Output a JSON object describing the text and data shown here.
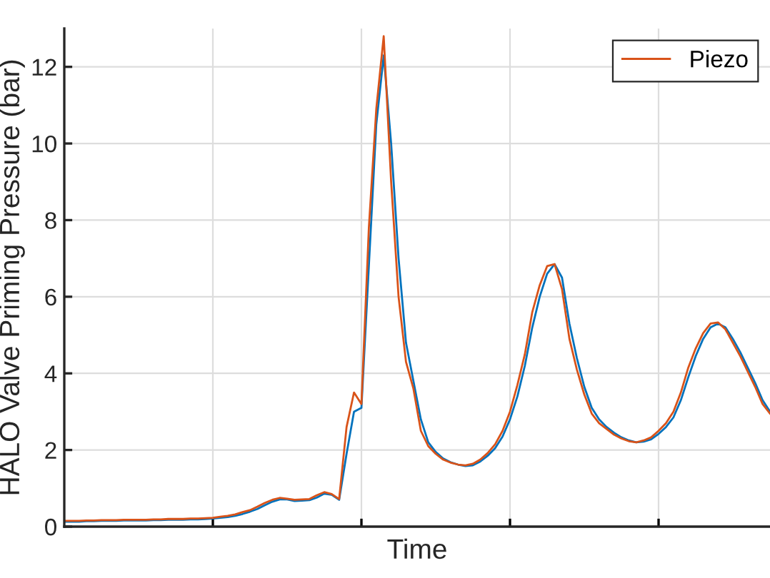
{
  "chart_data": {
    "type": "line",
    "xlabel": "Time",
    "ylabel": "HALO Valve Priming Pressure (bar)",
    "categories": [
      null,
      null,
      null,
      null,
      null,
      null,
      null,
      null,
      null,
      null,
      null,
      null,
      null,
      null,
      null,
      null,
      null,
      null,
      null,
      null,
      null,
      null,
      null,
      null,
      null,
      null,
      null,
      null,
      null,
      null,
      null,
      null,
      null,
      null,
      null,
      null,
      null,
      null,
      null,
      null,
      null,
      null,
      null,
      null,
      null,
      null,
      null,
      null,
      null,
      null,
      null,
      null,
      null,
      null,
      null,
      null,
      null,
      null,
      null,
      null,
      null,
      null,
      null,
      null,
      null,
      null,
      null,
      null,
      null,
      null,
      null,
      null,
      null,
      null,
      null,
      null,
      null,
      null,
      null,
      null,
      null,
      null,
      null,
      null,
      null,
      null,
      null,
      null,
      null,
      null,
      null,
      null,
      null,
      null,
      null,
      null
    ],
    "ylim": [
      0,
      13
    ],
    "yticks": [
      0,
      2,
      4,
      6,
      8,
      10,
      12
    ],
    "tick_labels": "y",
    "grid": true,
    "legend": "top right",
    "marker": "none",
    "line_style": "solid",
    "series": [
      {
        "color": "#0072bd",
        "values": [
          0.13,
          0.13,
          0.13,
          0.14,
          0.14,
          0.15,
          0.15,
          0.15,
          0.16,
          0.16,
          0.16,
          0.16,
          0.17,
          0.17,
          0.18,
          0.18,
          0.18,
          0.19,
          0.19,
          0.2,
          0.21,
          0.23,
          0.25,
          0.28,
          0.33,
          0.39,
          0.46,
          0.56,
          0.65,
          0.71,
          0.71,
          0.67,
          0.68,
          0.69,
          0.76,
          0.86,
          0.83,
          0.7,
          1.9,
          3.0,
          3.1,
          6.8,
          10.5,
          12.3,
          10.0,
          7.0,
          4.8,
          3.8,
          2.8,
          2.2,
          1.95,
          1.78,
          1.68,
          1.62,
          1.58,
          1.6,
          1.7,
          1.85,
          2.05,
          2.35,
          2.8,
          3.4,
          4.2,
          5.2,
          6.0,
          6.6,
          6.85,
          6.5,
          5.3,
          4.4,
          3.65,
          3.1,
          2.8,
          2.6,
          2.45,
          2.33,
          2.25,
          2.2,
          2.22,
          2.28,
          2.42,
          2.6,
          2.85,
          3.3,
          3.9,
          4.45,
          4.9,
          5.2,
          5.3,
          5.2,
          4.9,
          4.55,
          4.15,
          3.75,
          3.3,
          3.0
        ]
      },
      {
        "name": "Piezo",
        "color": "#d95319",
        "values": [
          0.15,
          0.15,
          0.15,
          0.16,
          0.16,
          0.17,
          0.17,
          0.17,
          0.18,
          0.18,
          0.18,
          0.18,
          0.19,
          0.19,
          0.2,
          0.2,
          0.2,
          0.21,
          0.21,
          0.22,
          0.23,
          0.26,
          0.28,
          0.32,
          0.38,
          0.43,
          0.52,
          0.62,
          0.7,
          0.75,
          0.73,
          0.7,
          0.71,
          0.72,
          0.82,
          0.9,
          0.85,
          0.72,
          2.6,
          3.5,
          3.2,
          7.8,
          10.9,
          12.8,
          9.0,
          6.0,
          4.3,
          3.6,
          2.5,
          2.1,
          1.9,
          1.75,
          1.67,
          1.62,
          1.6,
          1.64,
          1.75,
          1.92,
          2.15,
          2.5,
          3.0,
          3.7,
          4.5,
          5.6,
          6.3,
          6.8,
          6.85,
          6.2,
          4.9,
          4.1,
          3.45,
          2.95,
          2.7,
          2.55,
          2.4,
          2.3,
          2.23,
          2.2,
          2.25,
          2.33,
          2.5,
          2.7,
          3.0,
          3.5,
          4.15,
          4.65,
          5.05,
          5.3,
          5.33,
          5.15,
          4.8,
          4.45,
          4.05,
          3.65,
          3.2,
          2.95
        ]
      }
    ]
  }
}
